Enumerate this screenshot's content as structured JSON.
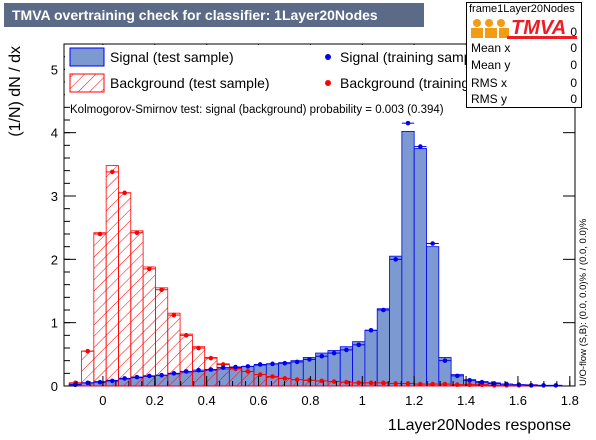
{
  "header": {
    "title": "TMVA overtraining check for classifier: 1Layer20Nodes"
  },
  "stats_box": {
    "name": "frame1Layer20Nodes",
    "rows": [
      {
        "label": "Entries",
        "value": "0"
      },
      {
        "label": "Mean x",
        "value": "0"
      },
      {
        "label": "Mean y",
        "value": "0"
      },
      {
        "label": "RMS x",
        "value": "0"
      },
      {
        "label": "RMS y",
        "value": "0"
      }
    ],
    "logo_text": "TMVA"
  },
  "side_label": "U/O-flow (S,B): (0.0, 0.0)% / (0.0, 0.0)%",
  "colors": {
    "signal_fill": "#7d99d1",
    "signal_line": "#0000ee",
    "background_line": "#ff0000",
    "header_bg": "#5a6a87"
  },
  "chart_data": {
    "type": "histogram",
    "xlabel": "1Layer20Nodes response",
    "ylabel": "(1/N) dN / dx",
    "xlim": [
      -0.15,
      1.82
    ],
    "ylim": [
      0,
      5.4
    ],
    "xticks": [
      "0",
      "0.2",
      "0.4",
      "0.6",
      "0.8",
      "1",
      "1.2",
      "1.4",
      "1.6",
      "1.8"
    ],
    "yticks": [
      "0",
      "1",
      "2",
      "3",
      "4",
      "5"
    ],
    "ks_text": "Kolmogorov-Smirnov test: signal (background) probability = 0.003 (0.394)",
    "legend": [
      {
        "label": "Signal (test sample)",
        "style": "signal-fill"
      },
      {
        "label": "Signal (training sample)",
        "style": "signal-point"
      },
      {
        "label": "Background (test sample)",
        "style": "background-hatch"
      },
      {
        "label": "Background (training sample)",
        "style": "background-point"
      }
    ],
    "bins": {
      "start": -0.13,
      "width": 0.0475,
      "count": 40
    },
    "signal_test": [
      0.03,
      0.05,
      0.07,
      0.09,
      0.11,
      0.13,
      0.15,
      0.17,
      0.19,
      0.21,
      0.23,
      0.25,
      0.27,
      0.29,
      0.31,
      0.33,
      0.35,
      0.37,
      0.4,
      0.45,
      0.52,
      0.56,
      0.62,
      0.7,
      0.88,
      1.22,
      2.05,
      4.02,
      3.75,
      2.2,
      0.45,
      0.18,
      0.1,
      0.07,
      0.05,
      0.03,
      0.02,
      0.02,
      0.01,
      0.01
    ],
    "signal_train": [
      0.02,
      0.05,
      0.06,
      0.08,
      0.12,
      0.14,
      0.16,
      0.17,
      0.2,
      0.23,
      0.25,
      0.26,
      0.29,
      0.3,
      0.31,
      0.34,
      0.35,
      0.36,
      0.38,
      0.42,
      0.47,
      0.52,
      0.57,
      0.65,
      0.88,
      1.2,
      2.0,
      4.15,
      3.78,
      2.25,
      0.4,
      0.16,
      0.09,
      0.06,
      0.04,
      0.03,
      0.02,
      0.01,
      0.01,
      0.01
    ],
    "background_test": [
      0.05,
      0.55,
      2.42,
      3.48,
      3.05,
      2.45,
      1.88,
      1.55,
      1.15,
      0.82,
      0.62,
      0.45,
      0.35,
      0.28,
      0.23,
      0.18,
      0.14,
      0.12,
      0.1,
      0.09,
      0.08,
      0.07,
      0.06,
      0.05,
      0.05,
      0.05,
      0.04,
      0.04,
      0.03,
      0.03,
      0.03,
      0.02,
      0.02,
      0.02,
      0.01,
      0.01,
      0.01,
      0.01,
      0.0,
      0.0
    ],
    "background_train": [
      0.05,
      0.55,
      2.4,
      3.38,
      3.05,
      2.42,
      1.85,
      1.52,
      1.12,
      0.8,
      0.6,
      0.44,
      0.34,
      0.27,
      0.23,
      0.18,
      0.15,
      0.12,
      0.1,
      0.09,
      0.08,
      0.07,
      0.06,
      0.05,
      0.05,
      0.05,
      0.04,
      0.04,
      0.03,
      0.03,
      0.03,
      0.02,
      0.02,
      0.02,
      0.01,
      0.01,
      0.01,
      0.01,
      0.0,
      0.0
    ]
  }
}
